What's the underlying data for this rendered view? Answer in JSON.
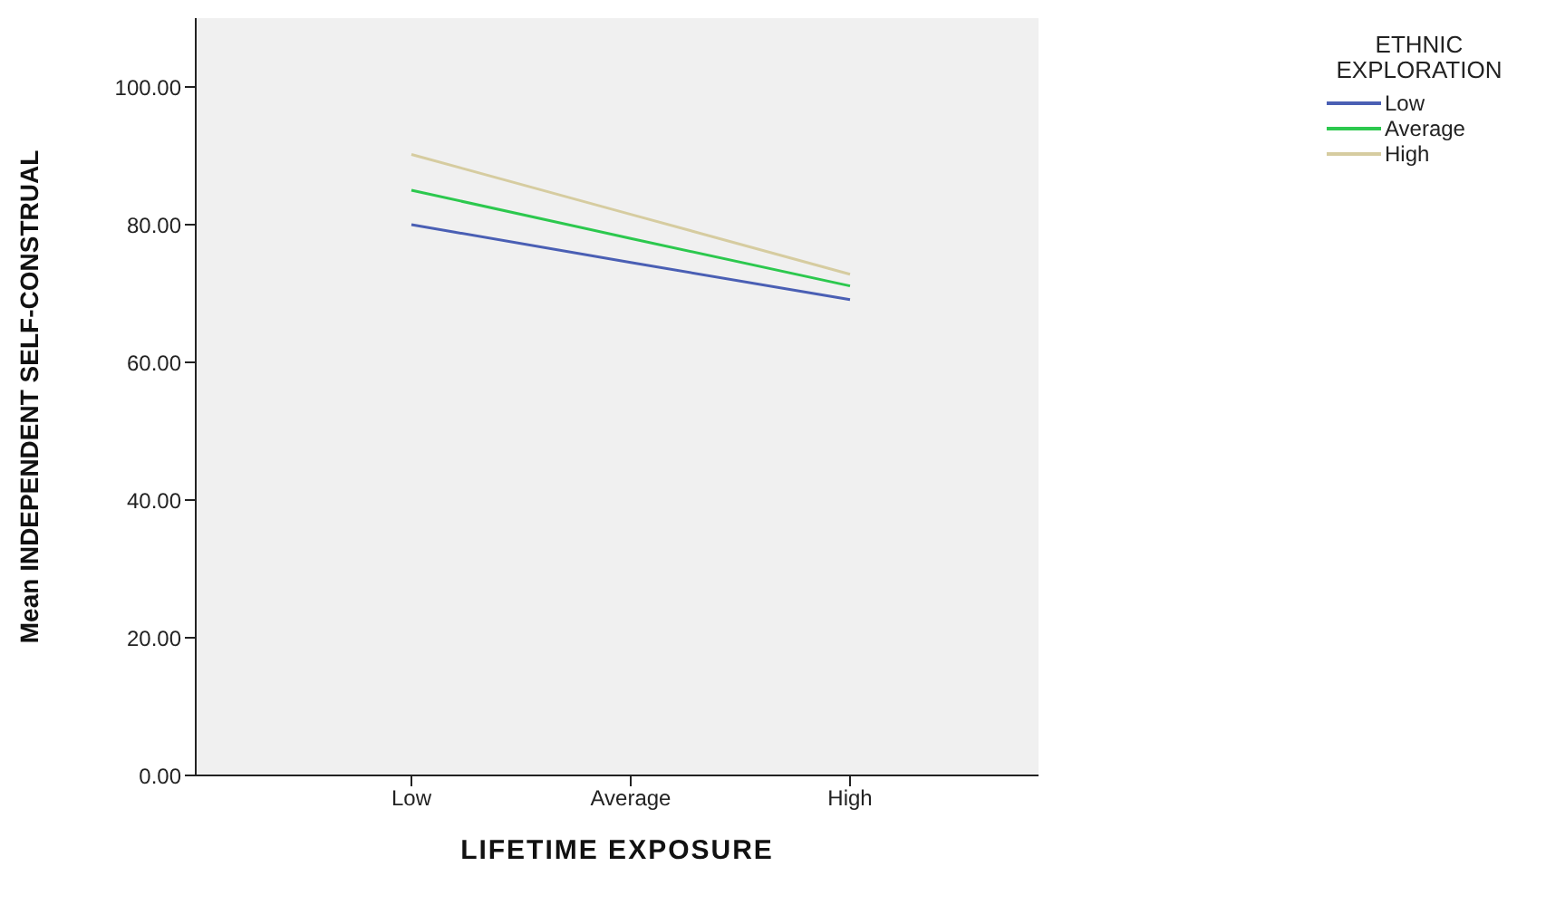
{
  "chart_data": {
    "type": "line",
    "xlabel": "LIFETIME EXPOSURE",
    "ylabel": "Mean INDEPENDENT SELF-CONSTRUAL",
    "legend_title": "ETHNIC EXPLORATION",
    "categories": [
      "Low",
      "Average",
      "High"
    ],
    "series": [
      {
        "name": "Low",
        "color": "#4a5fb4",
        "values": [
          80,
          74.5,
          69.1
        ]
      },
      {
        "name": "Average",
        "color": "#2cc84e",
        "values": [
          85,
          78,
          71.1
        ]
      },
      {
        "name": "High",
        "color": "#d6cca0",
        "values": [
          90.2,
          81.5,
          72.8
        ]
      }
    ],
    "ylim": [
      0,
      110
    ],
    "yticks": [
      {
        "value": 0,
        "label": "0.00"
      },
      {
        "value": 20,
        "label": "20.00"
      },
      {
        "value": 40,
        "label": "40.00"
      },
      {
        "value": 60,
        "label": "60.00"
      },
      {
        "value": 80,
        "label": "80.00"
      },
      {
        "value": 100,
        "label": "100.00"
      }
    ],
    "grid": false,
    "legend": "top right",
    "marker": "none",
    "line_style": "solid"
  }
}
